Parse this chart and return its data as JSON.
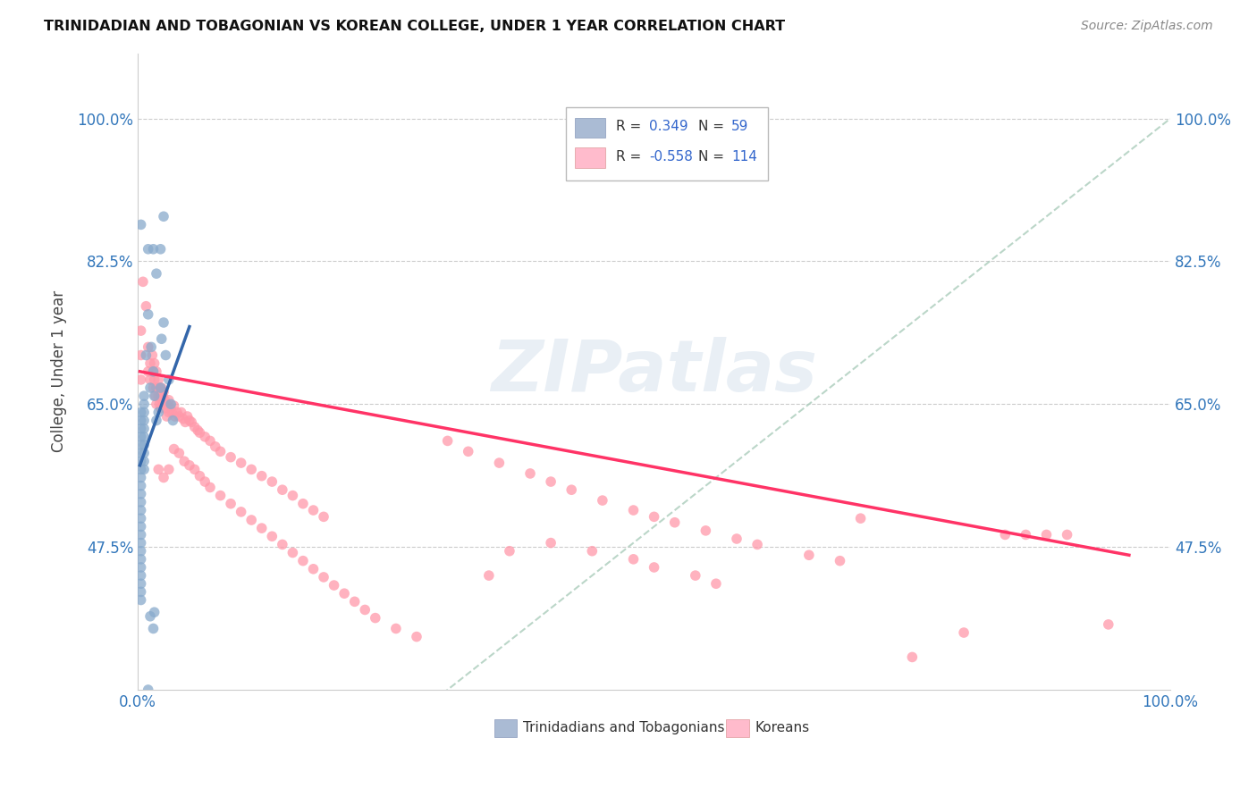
{
  "title": "TRINIDADIAN AND TOBAGONIAN VS KOREAN COLLEGE, UNDER 1 YEAR CORRELATION CHART",
  "source": "Source: ZipAtlas.com",
  "ylabel": "College, Under 1 year",
  "ytick_labels": [
    "100.0%",
    "82.5%",
    "65.0%",
    "47.5%"
  ],
  "ytick_vals": [
    1.0,
    0.825,
    0.65,
    0.475
  ],
  "xlim": [
    0.0,
    1.0
  ],
  "ylim": [
    0.3,
    1.08
  ],
  "blue_scatter": "#88AACC",
  "pink_scatter": "#FF99AA",
  "blue_line": "#3366AA",
  "pink_line": "#FF3366",
  "diagonal_color": "#AACCBB",
  "blue_line_x": [
    0.002,
    0.05
  ],
  "blue_line_y": [
    0.575,
    0.745
  ],
  "pink_line_x": [
    0.002,
    0.96
  ],
  "pink_line_y": [
    0.69,
    0.465
  ],
  "trinidadian_points": [
    [
      0.003,
      0.87
    ],
    [
      0.003,
      0.64
    ],
    [
      0.003,
      0.63
    ],
    [
      0.003,
      0.62
    ],
    [
      0.003,
      0.61
    ],
    [
      0.003,
      0.6
    ],
    [
      0.003,
      0.59
    ],
    [
      0.003,
      0.58
    ],
    [
      0.003,
      0.57
    ],
    [
      0.003,
      0.56
    ],
    [
      0.003,
      0.55
    ],
    [
      0.003,
      0.54
    ],
    [
      0.003,
      0.53
    ],
    [
      0.003,
      0.52
    ],
    [
      0.003,
      0.51
    ],
    [
      0.003,
      0.5
    ],
    [
      0.003,
      0.49
    ],
    [
      0.003,
      0.48
    ],
    [
      0.003,
      0.47
    ],
    [
      0.003,
      0.46
    ],
    [
      0.003,
      0.45
    ],
    [
      0.003,
      0.44
    ],
    [
      0.006,
      0.66
    ],
    [
      0.006,
      0.65
    ],
    [
      0.006,
      0.64
    ],
    [
      0.006,
      0.63
    ],
    [
      0.006,
      0.62
    ],
    [
      0.006,
      0.61
    ],
    [
      0.006,
      0.6
    ],
    [
      0.006,
      0.59
    ],
    [
      0.006,
      0.58
    ],
    [
      0.006,
      0.57
    ],
    [
      0.008,
      0.71
    ],
    [
      0.01,
      0.76
    ],
    [
      0.01,
      0.84
    ],
    [
      0.012,
      0.67
    ],
    [
      0.013,
      0.72
    ],
    [
      0.015,
      0.69
    ],
    [
      0.016,
      0.66
    ],
    [
      0.018,
      0.63
    ],
    [
      0.02,
      0.64
    ],
    [
      0.022,
      0.67
    ],
    [
      0.023,
      0.73
    ],
    [
      0.025,
      0.75
    ],
    [
      0.027,
      0.71
    ],
    [
      0.03,
      0.68
    ],
    [
      0.032,
      0.65
    ],
    [
      0.034,
      0.63
    ],
    [
      0.015,
      0.84
    ],
    [
      0.018,
      0.81
    ],
    [
      0.022,
      0.84
    ],
    [
      0.025,
      0.88
    ],
    [
      0.012,
      0.39
    ],
    [
      0.015,
      0.375
    ],
    [
      0.016,
      0.395
    ],
    [
      0.01,
      0.3
    ],
    [
      0.003,
      0.43
    ],
    [
      0.003,
      0.42
    ],
    [
      0.003,
      0.41
    ]
  ],
  "korean_points": [
    [
      0.003,
      0.74
    ],
    [
      0.003,
      0.71
    ],
    [
      0.003,
      0.68
    ],
    [
      0.005,
      0.8
    ],
    [
      0.008,
      0.77
    ],
    [
      0.01,
      0.72
    ],
    [
      0.01,
      0.69
    ],
    [
      0.012,
      0.7
    ],
    [
      0.012,
      0.68
    ],
    [
      0.014,
      0.71
    ],
    [
      0.015,
      0.69
    ],
    [
      0.015,
      0.67
    ],
    [
      0.016,
      0.7
    ],
    [
      0.016,
      0.68
    ],
    [
      0.017,
      0.66
    ],
    [
      0.018,
      0.69
    ],
    [
      0.018,
      0.67
    ],
    [
      0.018,
      0.65
    ],
    [
      0.02,
      0.68
    ],
    [
      0.02,
      0.66
    ],
    [
      0.021,
      0.67
    ],
    [
      0.021,
      0.65
    ],
    [
      0.022,
      0.66
    ],
    [
      0.022,
      0.645
    ],
    [
      0.023,
      0.67
    ],
    [
      0.023,
      0.655
    ],
    [
      0.024,
      0.66
    ],
    [
      0.025,
      0.665
    ],
    [
      0.025,
      0.65
    ],
    [
      0.026,
      0.655
    ],
    [
      0.027,
      0.645
    ],
    [
      0.028,
      0.65
    ],
    [
      0.028,
      0.635
    ],
    [
      0.03,
      0.655
    ],
    [
      0.03,
      0.64
    ],
    [
      0.032,
      0.645
    ],
    [
      0.033,
      0.64
    ],
    [
      0.035,
      0.648
    ],
    [
      0.036,
      0.635
    ],
    [
      0.038,
      0.64
    ],
    [
      0.04,
      0.635
    ],
    [
      0.042,
      0.64
    ],
    [
      0.044,
      0.632
    ],
    [
      0.046,
      0.628
    ],
    [
      0.048,
      0.635
    ],
    [
      0.05,
      0.63
    ],
    [
      0.052,
      0.628
    ],
    [
      0.055,
      0.622
    ],
    [
      0.058,
      0.618
    ],
    [
      0.06,
      0.615
    ],
    [
      0.065,
      0.61
    ],
    [
      0.07,
      0.605
    ],
    [
      0.075,
      0.598
    ],
    [
      0.08,
      0.592
    ],
    [
      0.09,
      0.585
    ],
    [
      0.1,
      0.578
    ],
    [
      0.11,
      0.57
    ],
    [
      0.12,
      0.562
    ],
    [
      0.13,
      0.555
    ],
    [
      0.14,
      0.545
    ],
    [
      0.15,
      0.538
    ],
    [
      0.16,
      0.528
    ],
    [
      0.17,
      0.52
    ],
    [
      0.18,
      0.512
    ],
    [
      0.02,
      0.57
    ],
    [
      0.025,
      0.56
    ],
    [
      0.03,
      0.57
    ],
    [
      0.035,
      0.595
    ],
    [
      0.04,
      0.59
    ],
    [
      0.045,
      0.58
    ],
    [
      0.05,
      0.575
    ],
    [
      0.055,
      0.57
    ],
    [
      0.06,
      0.562
    ],
    [
      0.065,
      0.555
    ],
    [
      0.07,
      0.548
    ],
    [
      0.08,
      0.538
    ],
    [
      0.09,
      0.528
    ],
    [
      0.1,
      0.518
    ],
    [
      0.11,
      0.508
    ],
    [
      0.12,
      0.498
    ],
    [
      0.13,
      0.488
    ],
    [
      0.14,
      0.478
    ],
    [
      0.15,
      0.468
    ],
    [
      0.16,
      0.458
    ],
    [
      0.17,
      0.448
    ],
    [
      0.18,
      0.438
    ],
    [
      0.19,
      0.428
    ],
    [
      0.2,
      0.418
    ],
    [
      0.21,
      0.408
    ],
    [
      0.22,
      0.398
    ],
    [
      0.23,
      0.388
    ],
    [
      0.25,
      0.375
    ],
    [
      0.27,
      0.365
    ],
    [
      0.3,
      0.605
    ],
    [
      0.32,
      0.592
    ],
    [
      0.35,
      0.578
    ],
    [
      0.38,
      0.565
    ],
    [
      0.4,
      0.555
    ],
    [
      0.42,
      0.545
    ],
    [
      0.45,
      0.532
    ],
    [
      0.48,
      0.52
    ],
    [
      0.5,
      0.512
    ],
    [
      0.52,
      0.505
    ],
    [
      0.55,
      0.495
    ],
    [
      0.58,
      0.485
    ],
    [
      0.6,
      0.478
    ],
    [
      0.65,
      0.465
    ],
    [
      0.68,
      0.458
    ],
    [
      0.7,
      0.51
    ],
    [
      0.75,
      0.34
    ],
    [
      0.8,
      0.37
    ],
    [
      0.84,
      0.49
    ],
    [
      0.86,
      0.49
    ],
    [
      0.88,
      0.49
    ],
    [
      0.9,
      0.49
    ],
    [
      0.94,
      0.38
    ],
    [
      0.34,
      0.44
    ],
    [
      0.36,
      0.47
    ],
    [
      0.4,
      0.48
    ],
    [
      0.44,
      0.47
    ],
    [
      0.48,
      0.46
    ],
    [
      0.5,
      0.45
    ],
    [
      0.54,
      0.44
    ],
    [
      0.56,
      0.43
    ]
  ]
}
